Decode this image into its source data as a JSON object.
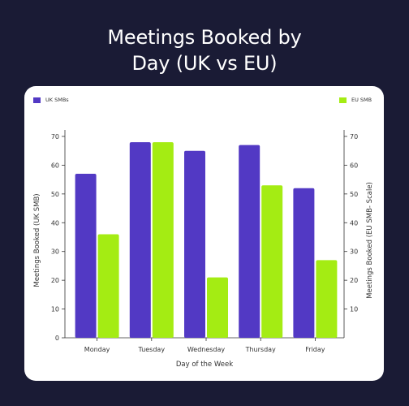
{
  "title_line1": "Meetings Booked by",
  "title_line2": "Day (UK vs EU)",
  "colors": {
    "background": "#1a1b35",
    "card": "#ffffff",
    "uk": "#5239c4",
    "eu": "#a4ec13",
    "text": "#333333"
  },
  "chart_data": {
    "type": "bar",
    "title": "Meetings Booked by Day (UK vs EU)",
    "categories": [
      "Monday",
      "Tuesday",
      "Wednesday",
      "Thursday",
      "Friday"
    ],
    "series": [
      {
        "name": "UK SMBs",
        "axis": "left",
        "values": [
          57,
          68,
          65,
          67,
          52
        ]
      },
      {
        "name": "EU SMB",
        "axis": "right",
        "values": [
          36,
          68,
          21,
          53,
          27
        ]
      }
    ],
    "xlabel": "Day of the Week",
    "ylabel": "Meetings Booked (UK SMB)",
    "ylabel_right": "Meetings Booked (EU SMB- Scale)",
    "ylim": [
      0,
      70
    ],
    "yticks": [
      0,
      10,
      20,
      30,
      40,
      50,
      60,
      70
    ],
    "ylim_right": [
      0,
      70
    ],
    "yticks_right": [
      10,
      20,
      30,
      40,
      50,
      60,
      70
    ],
    "legend": "top",
    "grid": false
  }
}
